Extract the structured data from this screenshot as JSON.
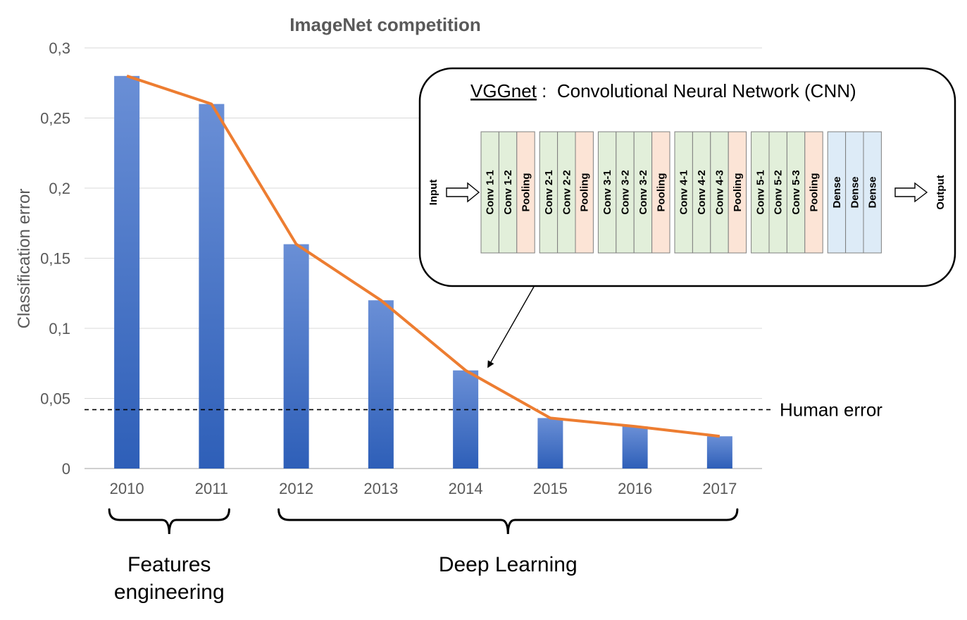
{
  "chart_data": {
    "type": "bar",
    "title": "ImageNet competition",
    "xlabel": "",
    "ylabel": "Classification error",
    "categories": [
      "2010",
      "2011",
      "2012",
      "2013",
      "2014",
      "2015",
      "2016",
      "2017"
    ],
    "values": [
      0.28,
      0.26,
      0.16,
      0.12,
      0.07,
      0.036,
      0.03,
      0.023
    ],
    "ylim": [
      0,
      0.3
    ],
    "yticks": [
      "0",
      "0,05",
      "0,1",
      "0,15",
      "0,2",
      "0,25",
      "0,3"
    ],
    "ytick_values": [
      0,
      0.05,
      0.1,
      0.15,
      0.2,
      0.25,
      0.3
    ],
    "grid": true,
    "legend": "none",
    "overlay_line": {
      "values": [
        0.28,
        0.26,
        0.16,
        0.12,
        0.07,
        0.036,
        0.03,
        0.023
      ],
      "color": "#ED7D31"
    },
    "reference_line": {
      "value": 0.042,
      "label": "Human error"
    },
    "bar_color": "#4472C4",
    "groups": [
      {
        "label_lines": [
          "Features",
          "engineering"
        ],
        "start_index": 0,
        "end_index": 1
      },
      {
        "label_lines": [
          "Deep Learning"
        ],
        "start_index": 2,
        "end_index": 7
      }
    ],
    "arrow_target_index": 4
  },
  "inset": {
    "title_name": "VGGnet",
    "title_separator": " :  ",
    "title_rest": "Convolutional Neural Network (CNN)",
    "input_label": "Input",
    "output_label": "Output",
    "blocks": [
      {
        "layers": [
          {
            "label": "Conv 1-1",
            "kind": "conv"
          },
          {
            "label": "Conv 1-2",
            "kind": "conv"
          },
          {
            "label": "Pooling",
            "kind": "pool"
          }
        ]
      },
      {
        "layers": [
          {
            "label": "Conv 2-1",
            "kind": "conv"
          },
          {
            "label": "Conv 2-2",
            "kind": "conv"
          },
          {
            "label": "Pooling",
            "kind": "pool"
          }
        ]
      },
      {
        "layers": [
          {
            "label": "Conv 3-1",
            "kind": "conv"
          },
          {
            "label": "Conv 3-2",
            "kind": "conv"
          },
          {
            "label": "Conv 3-2",
            "kind": "conv"
          },
          {
            "label": "Pooling",
            "kind": "pool"
          }
        ]
      },
      {
        "layers": [
          {
            "label": "Conv 4-1",
            "kind": "conv"
          },
          {
            "label": "Conv 4-2",
            "kind": "conv"
          },
          {
            "label": "Conv 4-3",
            "kind": "conv"
          },
          {
            "label": "Pooling",
            "kind": "pool"
          }
        ]
      },
      {
        "layers": [
          {
            "label": "Conv 5-1",
            "kind": "conv"
          },
          {
            "label": "Conv 5-2",
            "kind": "conv"
          },
          {
            "label": "Conv 5-3",
            "kind": "conv"
          },
          {
            "label": "Pooling",
            "kind": "pool"
          }
        ]
      },
      {
        "layers": [
          {
            "label": "Dense",
            "kind": "dense"
          },
          {
            "label": "Dense",
            "kind": "dense"
          },
          {
            "label": "Dense",
            "kind": "dense"
          }
        ]
      }
    ],
    "colors": {
      "conv": "#E2EFDA",
      "pool": "#FCE4D6",
      "dense": "#DDEBF7"
    }
  }
}
